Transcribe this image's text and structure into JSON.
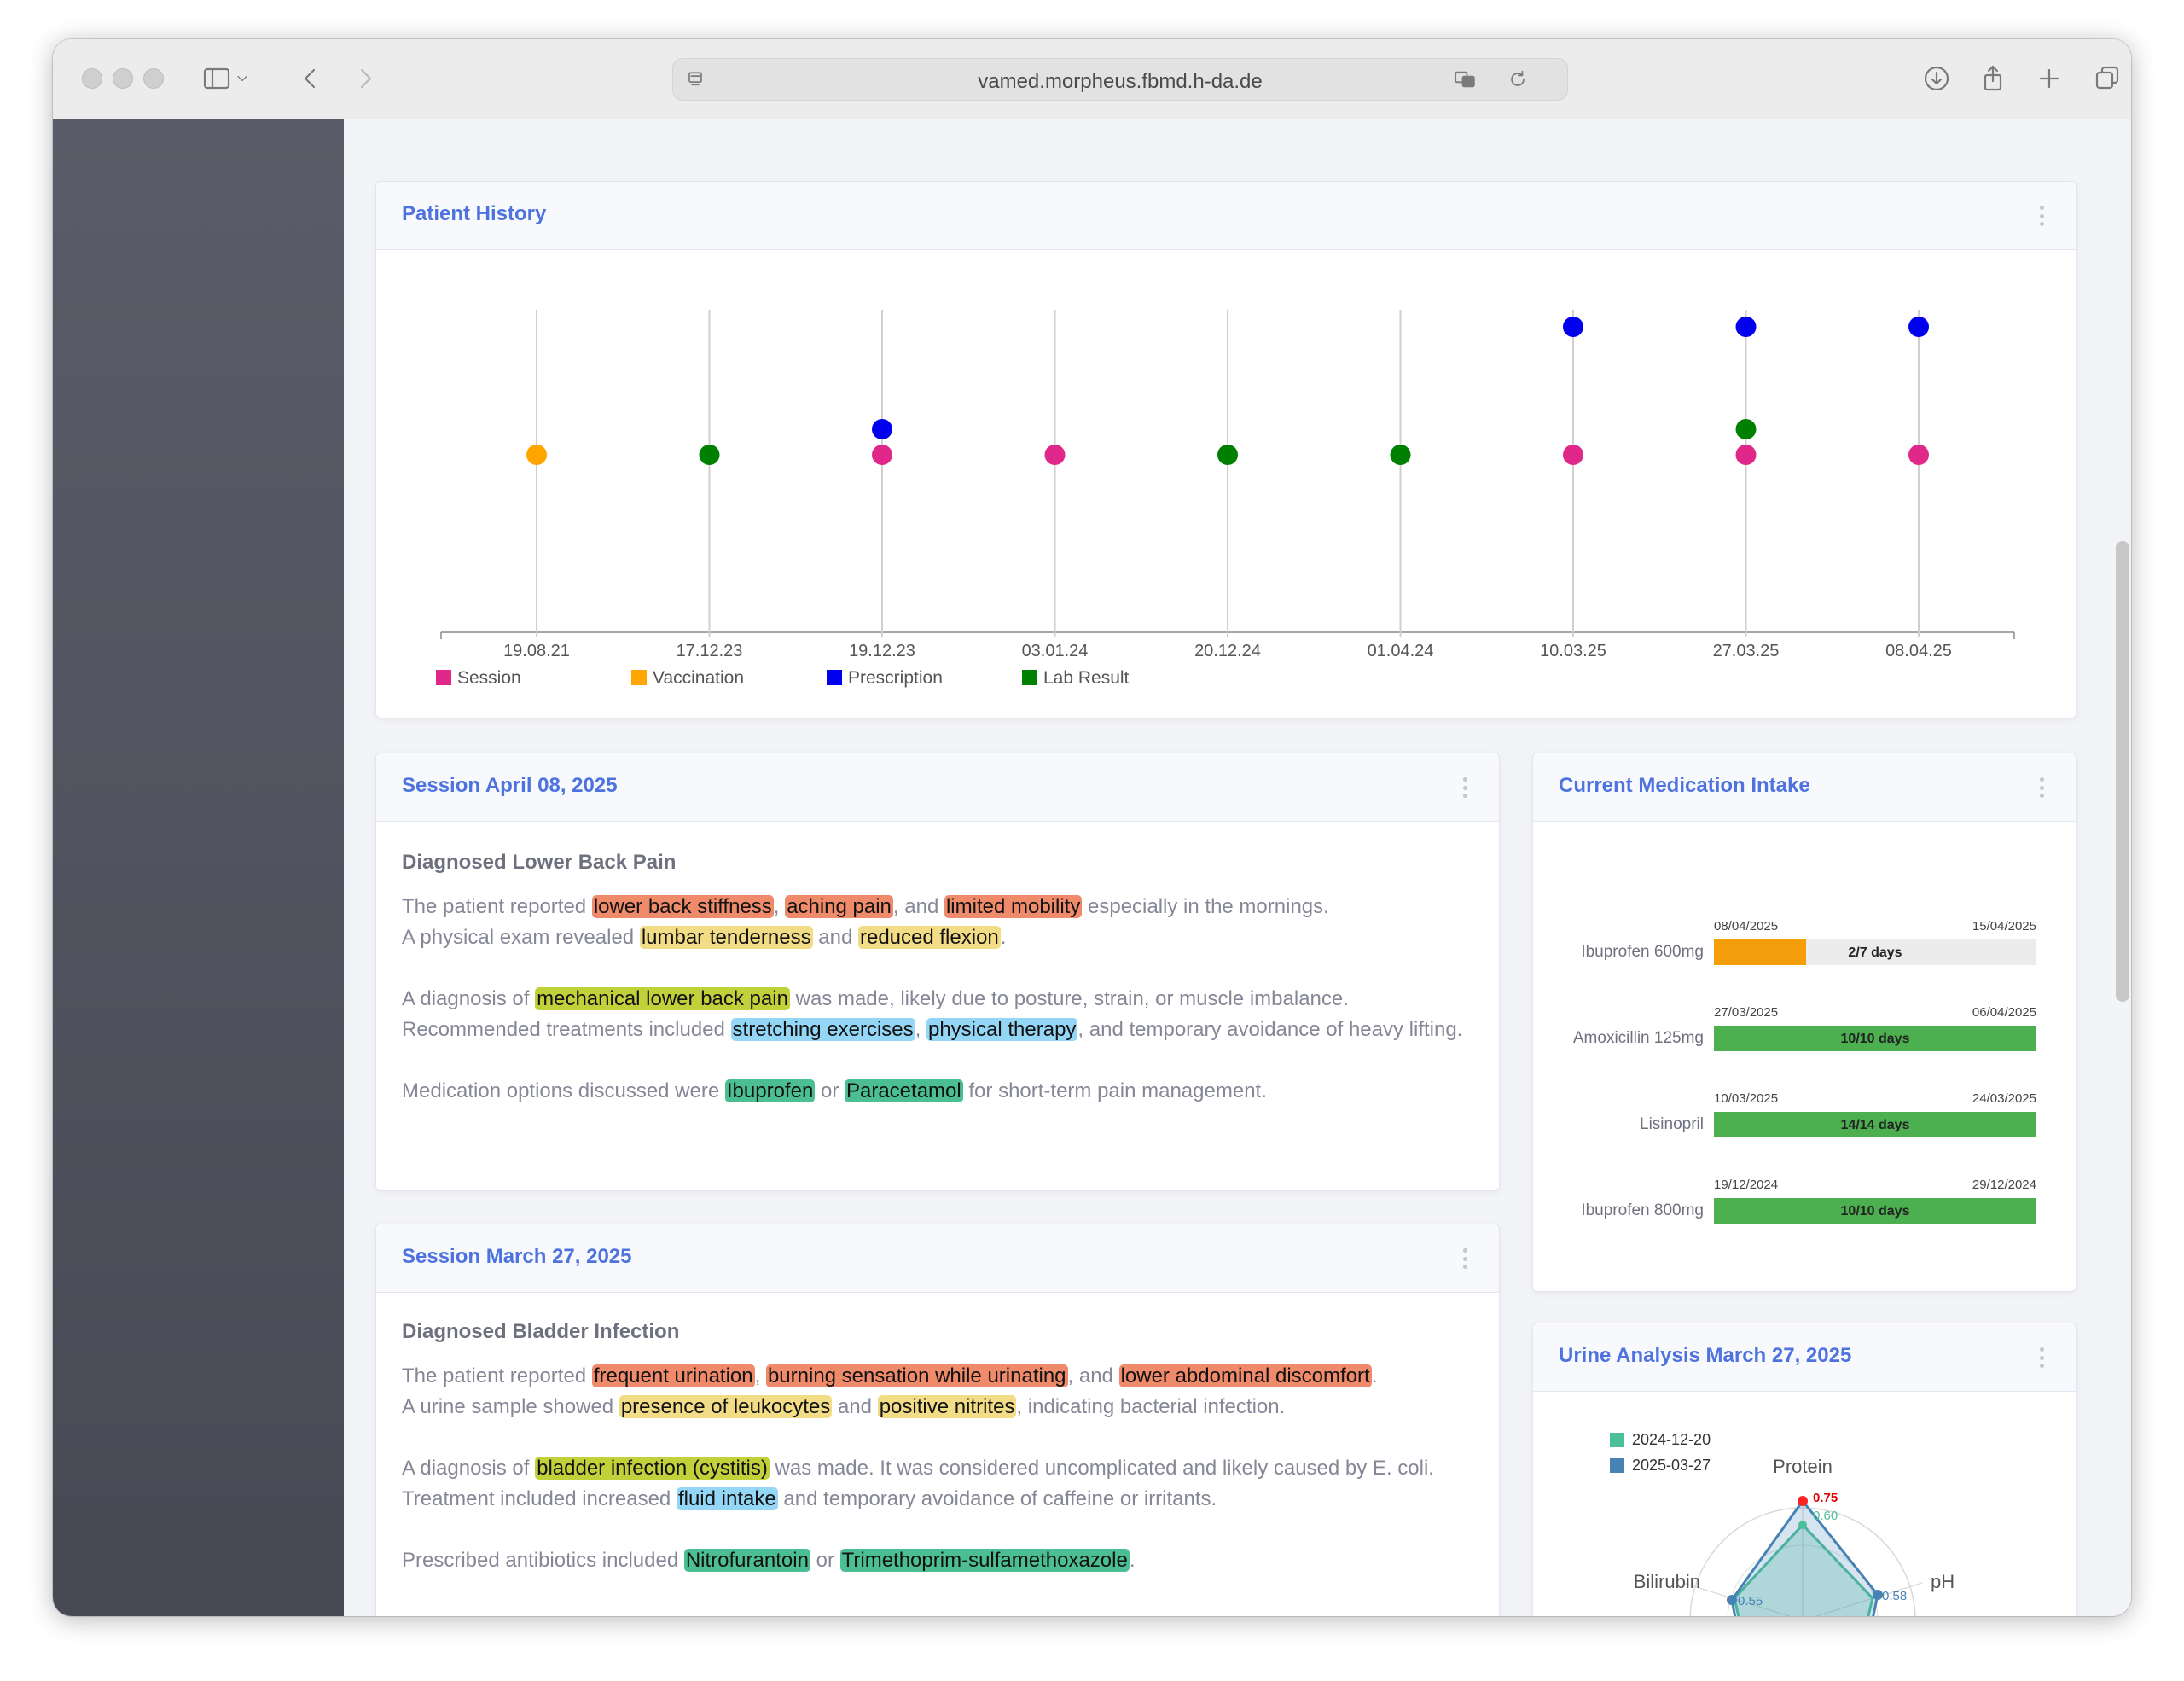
{
  "browser": {
    "url": "vamed.morpheus.fbmd.h-da.de"
  },
  "patient_history": {
    "title": "Patient History",
    "dates": [
      "19.08.21",
      "17.12.23",
      "19.12.23",
      "03.01.24",
      "20.12.24",
      "01.04.24",
      "10.03.25",
      "27.03.25",
      "08.04.25"
    ],
    "legend": [
      {
        "name": "Session",
        "color": "#e0288a"
      },
      {
        "name": "Vaccination",
        "color": "#ffa500"
      },
      {
        "name": "Prescription",
        "color": "#0000ee"
      },
      {
        "name": "Lab Result",
        "color": "#008000"
      }
    ],
    "events": [
      {
        "date_index": 0,
        "types": [
          "Vaccination"
        ]
      },
      {
        "date_index": 1,
        "types": [
          "Lab Result"
        ]
      },
      {
        "date_index": 2,
        "types": [
          "Session",
          "Prescription"
        ]
      },
      {
        "date_index": 3,
        "types": [
          "Session"
        ]
      },
      {
        "date_index": 4,
        "types": [
          "Lab Result"
        ]
      },
      {
        "date_index": 5,
        "types": [
          "Lab Result"
        ]
      },
      {
        "date_index": 6,
        "types": [
          "Session",
          "Prescription"
        ]
      },
      {
        "date_index": 7,
        "types": [
          "Session",
          "Lab Result",
          "Prescription"
        ]
      },
      {
        "date_index": 8,
        "types": [
          "Session",
          "Prescription"
        ]
      }
    ]
  },
  "session1": {
    "title": "Session April 08, 2025",
    "diagnosis_title": "Diagnosed Lower Back Pain",
    "p1": {
      "t1": "The patient reported ",
      "h1": "lower back stiffness",
      "t2": ", ",
      "h2": "aching pain",
      "t3": ", and ",
      "h3": "limited mobility",
      "t4": " especially in the mornings.",
      "t5": "A physical exam revealed ",
      "h4": "lumbar tenderness",
      "t6": " and ",
      "h5": "reduced flexion",
      "t7": "."
    },
    "p2": {
      "t1": "A diagnosis of ",
      "h1": "mechanical lower back pain",
      "t2": " was made, likely due to posture, strain, or muscle imbalance.",
      "t3": "Recommended treatments included ",
      "h2": "stretching exercises",
      "t4": ", ",
      "h3": "physical therapy",
      "t5": ", and temporary avoidance of heavy lifting."
    },
    "p3": {
      "t1": "Medication options discussed were ",
      "h1": "Ibuprofen",
      "t2": " or ",
      "h2": "Paracetamol",
      "t3": " for short-term pain management."
    }
  },
  "session2": {
    "title": "Session March 27, 2025",
    "diagnosis_title": "Diagnosed Bladder Infection",
    "p1": {
      "t1": "The patient reported ",
      "h1": "frequent urination",
      "t2": ", ",
      "h2": "burning sensation while urinating",
      "t3": ", and ",
      "h3": "lower abdominal discomfort",
      "t4": ".",
      "t5": "A urine sample showed ",
      "h4": "presence of leukocytes",
      "t6": " and ",
      "h5": "positive nitrites",
      "t7": ", indicating bacterial infection."
    },
    "p2": {
      "t1": "A diagnosis of ",
      "h1": "bladder infection (cystitis)",
      "t2": " was made. It was considered uncomplicated and likely caused by E. coli.",
      "t3": "Treatment included increased ",
      "h2": "fluid intake",
      "t4": " and temporary avoidance of caffeine or irritants."
    },
    "p3": {
      "t1": "Prescribed antibiotics included ",
      "h1": "Nitrofurantoin",
      "t2": " or ",
      "h2": "Trimethoprim-sulfamethoxazole",
      "t3": "."
    }
  },
  "medication": {
    "title": "Current Medication Intake",
    "items": [
      {
        "name": "Ibuprofen 600mg",
        "start": "08/04/2025",
        "end": "15/04/2025",
        "label": "2/7 days",
        "progress": 0.2857,
        "color": "#f59e0b"
      },
      {
        "name": "Amoxicillin 125mg",
        "start": "27/03/2025",
        "end": "06/04/2025",
        "label": "10/10 days",
        "progress": 1.0,
        "color": "#4caf50"
      },
      {
        "name": "Lisinopril",
        "start": "10/03/2025",
        "end": "24/03/2025",
        "label": "14/14 days",
        "progress": 1.0,
        "color": "#4caf50"
      },
      {
        "name": "Ibuprofen 800mg",
        "start": "19/12/2024",
        "end": "29/12/2024",
        "label": "10/10 days",
        "progress": 1.0,
        "color": "#4caf50"
      }
    ]
  },
  "urine": {
    "title": "Urine Analysis March 27, 2025",
    "legend": [
      {
        "name": "2024-12-20",
        "color": "#4dbf9a"
      },
      {
        "name": "2025-03-27",
        "color": "#4682b4"
      }
    ],
    "axes": [
      "Protein",
      "pH",
      "Bilirubin"
    ],
    "value_labels": {
      "protein_a": "0.75",
      "protein_b": "0.60",
      "ph": "0.58",
      "bilirubin": "0.55"
    }
  }
}
